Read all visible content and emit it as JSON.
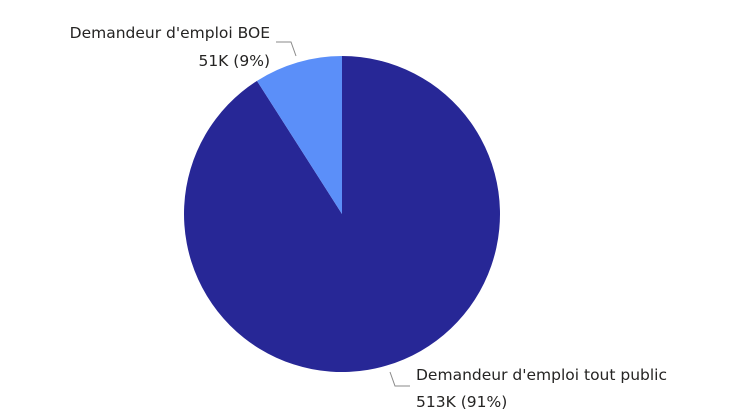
{
  "chart_data": {
    "type": "pie",
    "categories": [
      "Demandeur d'emploi tout public",
      "Demandeur d'emploi BOE"
    ],
    "values": [
      513,
      51
    ],
    "value_labels": [
      "513K",
      "51K"
    ],
    "percent_labels": [
      "91%",
      "9%"
    ],
    "colors": [
      "#272796",
      "#5b8ff9"
    ],
    "title": "",
    "legend": "none"
  }
}
